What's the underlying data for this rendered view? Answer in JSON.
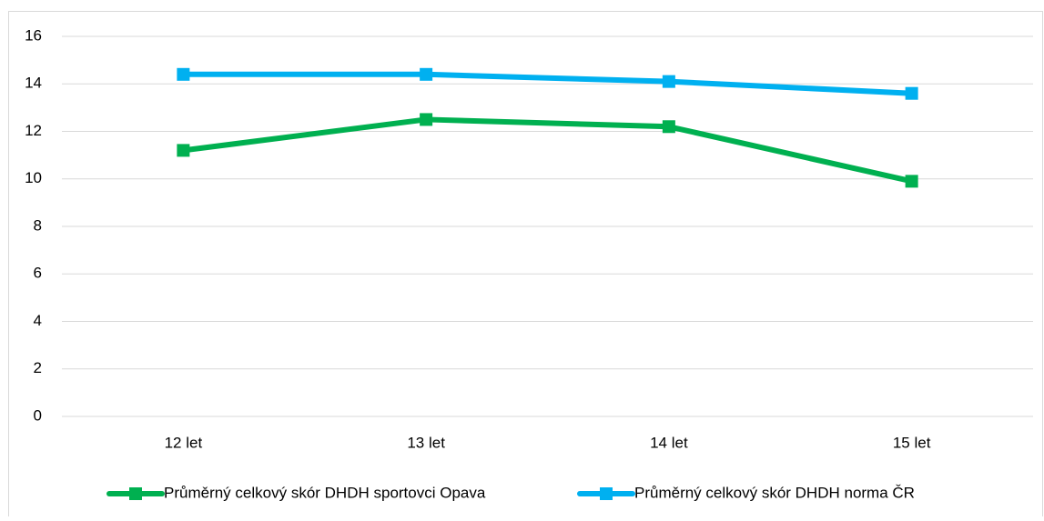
{
  "chart_data": {
    "type": "line",
    "categories": [
      "12 let",
      "13 let",
      "14 let",
      "15 let"
    ],
    "series": [
      {
        "name": "Průměrný celkový skór DHDH sportovci Opava",
        "color": "#00b050",
        "values": [
          11.2,
          12.5,
          12.2,
          9.9
        ]
      },
      {
        "name": "Průměrný celkový skór DHDH norma ČR",
        "color": "#00b0f0",
        "values": [
          14.4,
          14.4,
          14.1,
          13.6
        ]
      }
    ],
    "ylim": [
      0,
      16
    ],
    "yticks": [
      0,
      2,
      4,
      6,
      8,
      10,
      12,
      14,
      16
    ],
    "grid": true,
    "legend": "bottom"
  }
}
